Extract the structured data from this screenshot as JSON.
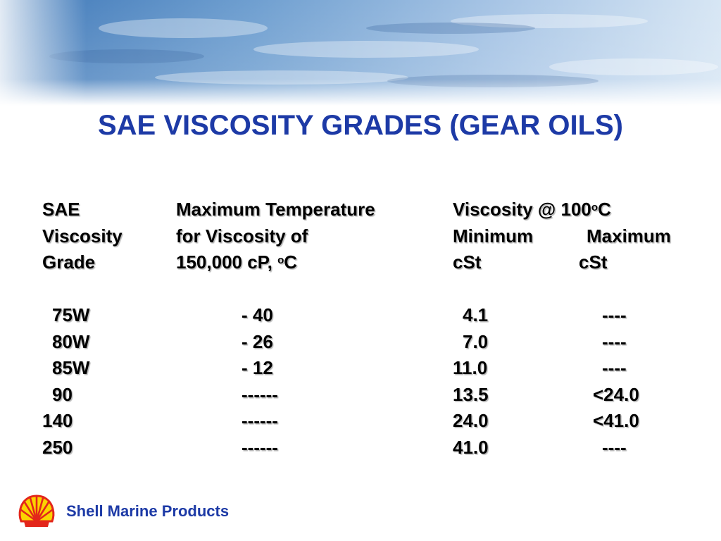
{
  "title": "SAE VISCOSITY GRADES (GEAR OILS)",
  "header": {
    "col1": [
      "SAE",
      "Viscosity",
      "Grade"
    ],
    "col2": [
      "Maximum Temperature",
      "for Viscosity of",
      "150,000 cP, "
    ],
    "col2_unit_sup": "o",
    "col2_unit": "C",
    "col3_line1": "Viscosity @ 100",
    "col3_line1_sup": "o",
    "col3_line1_unit": "C",
    "col3_min": "Minimum",
    "col3_max": "Maximum",
    "col3_min_unit": "cSt",
    "col3_max_unit": "cSt"
  },
  "rows": [
    {
      "grade": "75W",
      "temp": "- 40",
      "min": "4.1",
      "max": "----"
    },
    {
      "grade": "80W",
      "temp": "- 26",
      "min": "7.0",
      "max": "----"
    },
    {
      "grade": "85W",
      "temp": "- 12",
      "min": "11.0",
      "max": "----"
    },
    {
      "grade": "90",
      "temp": "------",
      "min": "13.5",
      "max": "<24.0"
    },
    {
      "grade": "140",
      "temp": "------",
      "min": "24.0",
      "max": "<41.0"
    },
    {
      "grade": "250",
      "temp": "------",
      "min": "41.0",
      "max": "----"
    }
  ],
  "footer": {
    "brand": "Shell Marine Products",
    "logo_icon": "shell-pecten-logo"
  },
  "colors": {
    "title": "#1d3aa6",
    "brand": "#1d3aa6",
    "logo_red": "#e3261b",
    "logo_yellow": "#fbd300"
  }
}
